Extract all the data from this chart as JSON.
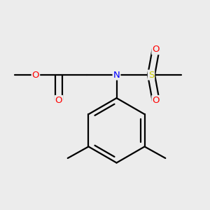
{
  "background_color": "#ececec",
  "bond_color": "#000000",
  "atom_colors": {
    "O": "#ff0000",
    "N": "#0000ff",
    "S": "#cccc00",
    "C": "#000000"
  },
  "figsize": [
    3.0,
    3.0
  ],
  "dpi": 100,
  "lw": 1.6,
  "fontsize": 9.5
}
